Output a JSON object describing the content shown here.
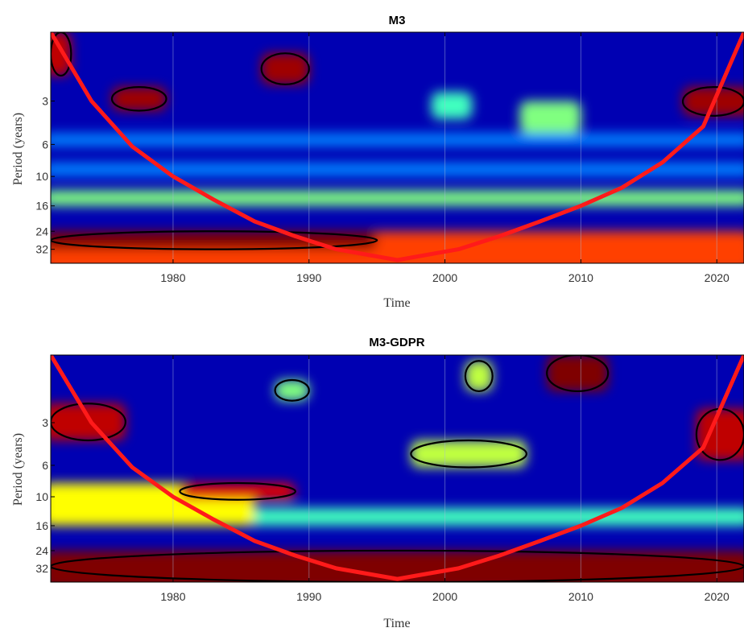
{
  "chart_data": [
    {
      "type": "heatmap",
      "subtype": "wavelet-power-spectrum",
      "title": "M3",
      "xlabel": "Time",
      "ylabel": "Period (years)",
      "xlim": [
        1971,
        2022
      ],
      "xticks": [
        1980,
        1990,
        2000,
        2010,
        2020
      ],
      "yscale": "log2",
      "ylim": [
        1.0,
        40
      ],
      "yticks": [
        3,
        6,
        10,
        16,
        24,
        32
      ],
      "colormap": "jet",
      "colormap_stops": [
        "#00007f",
        "#0000ff",
        "#00ffff",
        "#ffff00",
        "#ff0000",
        "#7f0000"
      ],
      "coi_color": "#ff1a1a",
      "contour_color": "#000000",
      "cone_of_influence": {
        "x": [
          1971.0,
          1974.0,
          1977.0,
          1980.0,
          1983.0,
          1986.0,
          1989.0,
          1992.0,
          1996.5,
          2001.0,
          2004.0,
          2007.0,
          2010.0,
          2013.0,
          2016.0,
          2019.0,
          2022.0
        ],
        "period": [
          1.0,
          3.0,
          6.2,
          10.0,
          14.5,
          20.5,
          26.0,
          32.0,
          38.0,
          32.0,
          26.0,
          20.5,
          16.0,
          12.0,
          8.0,
          4.5,
          1.0
        ]
      },
      "regions": [
        {
          "x": [
            1971,
            2022
          ],
          "period": [
            24,
            40
          ],
          "power": 0.75
        },
        {
          "x": [
            1971,
            1995
          ],
          "period": [
            24,
            32
          ],
          "power": 1.0
        },
        {
          "x": [
            1971,
            2022
          ],
          "period": [
            12.5,
            16
          ],
          "power": 0.5
        },
        {
          "x": [
            1971,
            2022
          ],
          "period": [
            8,
            10
          ],
          "power": 0.3
        },
        {
          "x": [
            1971,
            2022
          ],
          "period": [
            5,
            6.2
          ],
          "power": 0.3
        },
        {
          "x": [
            1975.5,
            1979.5
          ],
          "period": [
            2.4,
            3.5
          ],
          "power": 0.95
        },
        {
          "x": [
            1986.5,
            1990
          ],
          "period": [
            1.4,
            2.3
          ],
          "power": 0.95
        },
        {
          "x": [
            1999,
            2002
          ],
          "period": [
            2.6,
            4.0
          ],
          "power": 0.45
        },
        {
          "x": [
            2005.5,
            2010
          ],
          "period": [
            3.0,
            5.0
          ],
          "power": 0.5
        },
        {
          "x": [
            2017.5,
            2022
          ],
          "period": [
            2.4,
            3.8
          ],
          "power": 0.95
        },
        {
          "x": [
            1971,
            1972.5
          ],
          "period": [
            1.0,
            2.0
          ],
          "power": 0.9
        }
      ],
      "significance_contours": [
        {
          "x": [
            1971,
            1995
          ],
          "period": [
            24,
            32
          ]
        },
        {
          "x": [
            1975.5,
            1979.5
          ],
          "period": [
            2.4,
            3.5
          ]
        },
        {
          "x": [
            1986.5,
            1990
          ],
          "period": [
            1.4,
            2.3
          ]
        },
        {
          "x": [
            2017.5,
            2022
          ],
          "period": [
            2.4,
            3.8
          ]
        },
        {
          "x": [
            1971,
            1972.5
          ],
          "period": [
            1.0,
            2.0
          ]
        }
      ]
    },
    {
      "type": "heatmap",
      "subtype": "wavelet-power-spectrum",
      "title": "M3-GDPR",
      "xlabel": "Time",
      "ylabel": "Period (years)",
      "xlim": [
        1971,
        2022
      ],
      "xticks": [
        1980,
        1990,
        2000,
        2010,
        2020
      ],
      "yscale": "log2",
      "ylim": [
        1.0,
        40
      ],
      "yticks": [
        3,
        6,
        10,
        16,
        24,
        32
      ],
      "colormap": "jet",
      "colormap_stops": [
        "#00007f",
        "#0000ff",
        "#00ffff",
        "#ffff00",
        "#ff0000",
        "#7f0000"
      ],
      "coi_color": "#ff1a1a",
      "contour_color": "#000000",
      "cone_of_influence": {
        "x": [
          1971.0,
          1974.0,
          1977.0,
          1980.0,
          1983.0,
          1986.0,
          1989.0,
          1992.0,
          1996.5,
          2001.0,
          2004.0,
          2007.0,
          2010.0,
          2013.0,
          2016.0,
          2019.0,
          2022.0
        ],
        "period": [
          1.0,
          3.0,
          6.2,
          10.0,
          14.5,
          20.5,
          26.0,
          32.0,
          38.0,
          32.0,
          26.0,
          20.5,
          16.0,
          12.0,
          8.0,
          4.5,
          1.0
        ]
      },
      "regions": [
        {
          "x": [
            1971,
            2022
          ],
          "period": [
            24,
            40
          ],
          "power": 1.0
        },
        {
          "x": [
            1971,
            2022
          ],
          "period": [
            12,
            16
          ],
          "power": 0.45
        },
        {
          "x": [
            1971,
            1986
          ],
          "period": [
            8,
            16
          ],
          "power": 0.6
        },
        {
          "x": [
            1980.5,
            1989
          ],
          "period": [
            8,
            10.5
          ],
          "power": 0.85
        },
        {
          "x": [
            1971,
            1976.5
          ],
          "period": [
            2.2,
            4.0
          ],
          "power": 0.9
        },
        {
          "x": [
            1997.5,
            2006
          ],
          "period": [
            4.0,
            6.2
          ],
          "power": 0.55
        },
        {
          "x": [
            2007.5,
            2012
          ],
          "period": [
            1.0,
            1.8
          ],
          "power": 1.0
        },
        {
          "x": [
            2018.5,
            2022
          ],
          "period": [
            2.4,
            5.5
          ],
          "power": 0.9
        },
        {
          "x": [
            1987.5,
            1990
          ],
          "period": [
            1.5,
            2.1
          ],
          "power": 0.5
        },
        {
          "x": [
            2001.5,
            2003.5
          ],
          "period": [
            1.1,
            1.8
          ],
          "power": 0.55
        }
      ],
      "significance_contours": [
        {
          "x": [
            1980.5,
            1989
          ],
          "period": [
            8,
            10.5
          ]
        },
        {
          "x": [
            1971,
            1976.5
          ],
          "period": [
            2.2,
            4.0
          ]
        },
        {
          "x": [
            1997.5,
            2006
          ],
          "period": [
            4.0,
            6.2
          ]
        },
        {
          "x": [
            2007.5,
            2012
          ],
          "period": [
            1.0,
            1.8
          ]
        },
        {
          "x": [
            2018.5,
            2022
          ],
          "period": [
            2.4,
            5.5
          ]
        },
        {
          "x": [
            1987.5,
            1990
          ],
          "period": [
            1.5,
            2.1
          ]
        },
        {
          "x": [
            2001.5,
            2003.5
          ],
          "period": [
            1.1,
            1.8
          ]
        },
        {
          "x": [
            1971,
            2022
          ],
          "period": [
            24,
            40
          ]
        }
      ]
    }
  ]
}
